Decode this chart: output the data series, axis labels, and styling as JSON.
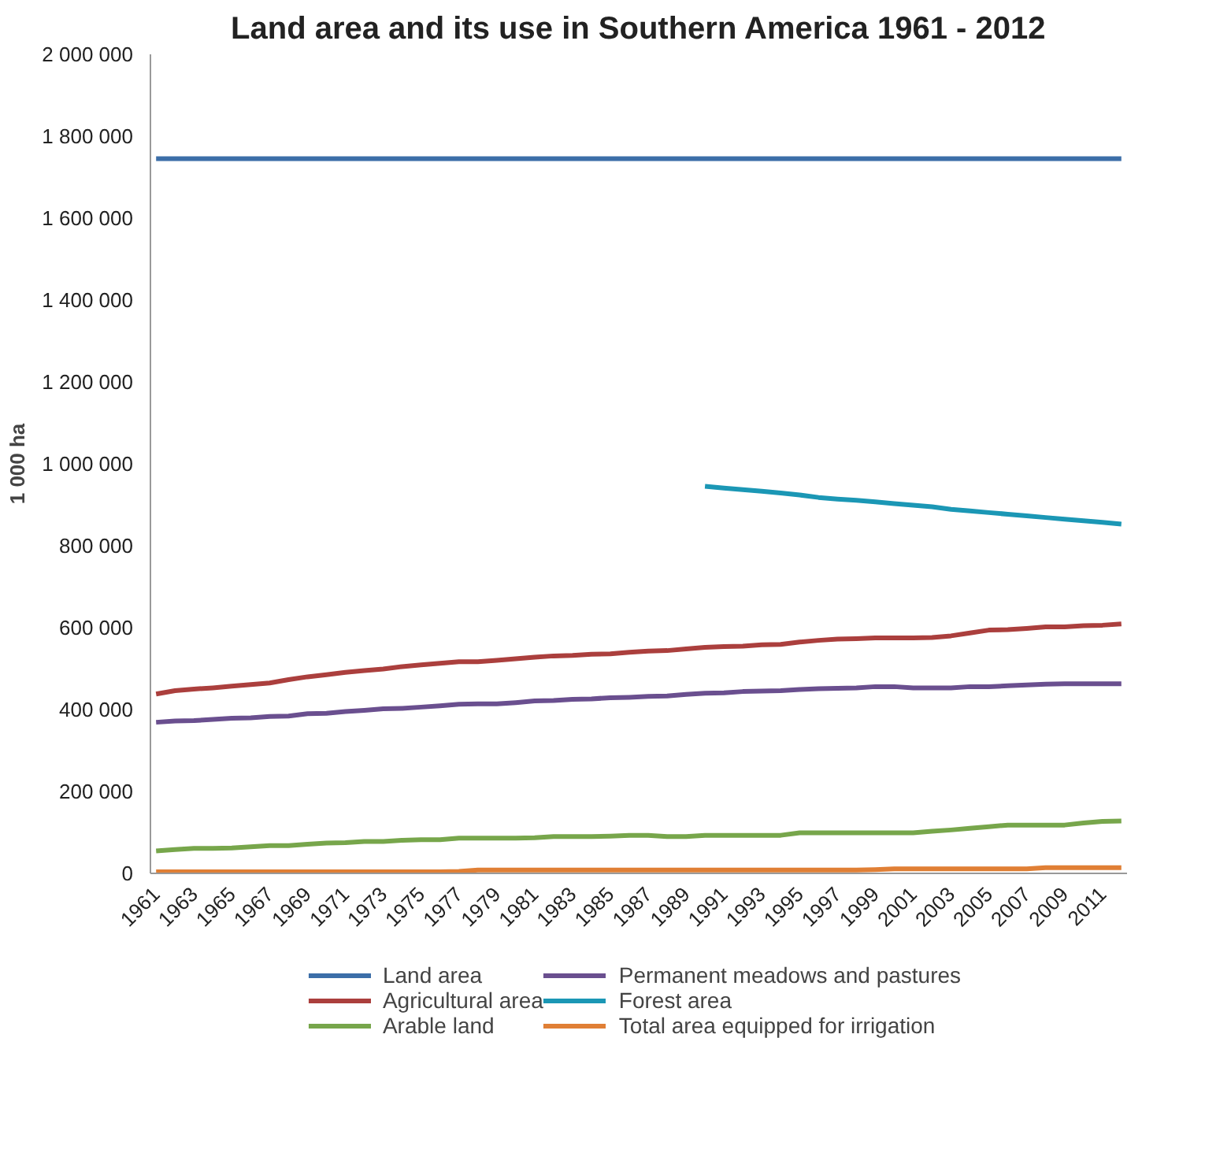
{
  "chart_data": {
    "type": "line",
    "title": "Land area and its use in Southern America 1961 - 2012",
    "ylabel": "1 000 ha",
    "x": [
      1961,
      1962,
      1963,
      1964,
      1965,
      1966,
      1967,
      1968,
      1969,
      1970,
      1971,
      1972,
      1973,
      1974,
      1975,
      1976,
      1977,
      1978,
      1979,
      1980,
      1981,
      1982,
      1983,
      1984,
      1985,
      1986,
      1987,
      1988,
      1989,
      1990,
      1991,
      1992,
      1993,
      1994,
      1995,
      1996,
      1997,
      1998,
      1999,
      2000,
      2001,
      2002,
      2003,
      2004,
      2005,
      2006,
      2007,
      2008,
      2009,
      2010,
      2011,
      2012
    ],
    "series": [
      {
        "name": "Land area",
        "color": "#3c6ea8",
        "values": [
          1745000,
          1745000,
          1745000,
          1745000,
          1745000,
          1745000,
          1745000,
          1745000,
          1745000,
          1745000,
          1745000,
          1745000,
          1745000,
          1745000,
          1745000,
          1745000,
          1745000,
          1745000,
          1745000,
          1745000,
          1745000,
          1745000,
          1745000,
          1745000,
          1745000,
          1745000,
          1745000,
          1745000,
          1745000,
          1745000,
          1745000,
          1745000,
          1745000,
          1745000,
          1745000,
          1745000,
          1745000,
          1745000,
          1745000,
          1745000,
          1745000,
          1745000,
          1745000,
          1745000,
          1745000,
          1745000,
          1745000,
          1745000,
          1745000,
          1745000,
          1745000,
          1745000
        ]
      },
      {
        "name": "Permanent meadows and pastures",
        "color": "#6a4f8f",
        "values": [
          369000,
          372000,
          373000,
          376000,
          379000,
          380000,
          383000,
          384000,
          390000,
          391000,
          395000,
          398000,
          402000,
          403000,
          406000,
          409000,
          413000,
          414000,
          414000,
          417000,
          421000,
          422000,
          425000,
          426000,
          429000,
          430000,
          432000,
          433000,
          437000,
          440000,
          441000,
          444000,
          445000,
          446000,
          449000,
          451000,
          452000,
          453000,
          456000,
          456000,
          453000,
          453000,
          453000,
          456000,
          456000,
          458000,
          460000,
          462000,
          463000,
          463000,
          463000,
          463000
        ]
      },
      {
        "name": "Agricultural area",
        "color": "#ab3f3d",
        "values": [
          438000,
          446000,
          450000,
          453000,
          457000,
          461000,
          465000,
          473000,
          480000,
          485000,
          491000,
          495000,
          499000,
          505000,
          509000,
          513000,
          517000,
          517000,
          520000,
          524000,
          528000,
          531000,
          532000,
          535000,
          536000,
          540000,
          543000,
          544000,
          548000,
          552000,
          554000,
          555000,
          558000,
          559000,
          565000,
          569000,
          572000,
          573000,
          575000,
          575000,
          575000,
          576000,
          580000,
          587000,
          594000,
          595000,
          598000,
          602000,
          602000,
          605000,
          606000,
          609000
        ]
      },
      {
        "name": "Forest area",
        "color": "#1b97b5",
        "values": [
          null,
          null,
          null,
          null,
          null,
          null,
          null,
          null,
          null,
          null,
          null,
          null,
          null,
          null,
          null,
          null,
          null,
          null,
          null,
          null,
          null,
          null,
          null,
          null,
          null,
          null,
          null,
          null,
          null,
          945000,
          941000,
          937000,
          933000,
          929000,
          924000,
          918000,
          914000,
          911000,
          907000,
          903000,
          899000,
          895000,
          889000,
          885000,
          881000,
          877000,
          873000,
          869000,
          865000,
          861000,
          857000,
          853000
        ]
      },
      {
        "name": "Arable land",
        "color": "#77a64b",
        "values": [
          55000,
          58000,
          61000,
          61000,
          62000,
          65000,
          68000,
          68000,
          71000,
          74000,
          75000,
          78000,
          78000,
          81000,
          82000,
          82000,
          86000,
          86000,
          86000,
          86000,
          87000,
          90000,
          90000,
          90000,
          91000,
          93000,
          93000,
          90000,
          90000,
          93000,
          93000,
          93000,
          93000,
          93000,
          99000,
          99000,
          99000,
          99000,
          99000,
          99000,
          99000,
          103000,
          106000,
          110000,
          114000,
          118000,
          118000,
          118000,
          118000,
          123000,
          127000,
          128000
        ]
      },
      {
        "name": "Total area equipped for irrigation",
        "color": "#e07f35",
        "values": [
          4000,
          4000,
          4000,
          4000,
          4000,
          4000,
          4000,
          4000,
          4000,
          4000,
          4000,
          4000,
          4000,
          4000,
          4000,
          4000,
          5000,
          8000,
          8000,
          8000,
          8000,
          8000,
          8000,
          8000,
          8000,
          8000,
          8000,
          8000,
          8000,
          8000,
          8000,
          8000,
          8000,
          8000,
          8000,
          8000,
          8000,
          8000,
          9000,
          11000,
          11000,
          11000,
          11000,
          11000,
          11000,
          11000,
          11000,
          14000,
          14000,
          14000,
          14000,
          14000
        ]
      }
    ],
    "xlim": [
      1960.7,
      2012.3
    ],
    "xticks": [
      1961,
      1963,
      1965,
      1967,
      1969,
      1971,
      1973,
      1975,
      1977,
      1979,
      1981,
      1983,
      1985,
      1987,
      1989,
      1991,
      1993,
      1995,
      1997,
      1999,
      2001,
      2003,
      2005,
      2007,
      2009,
      2011
    ],
    "ylim": [
      0,
      2000000
    ],
    "yticks": [
      {
        "value": 0,
        "label": "0"
      },
      {
        "value": 200000,
        "label": "200 000"
      },
      {
        "value": 400000,
        "label": "400 000"
      },
      {
        "value": 600000,
        "label": "600 000"
      },
      {
        "value": 800000,
        "label": "800 000"
      },
      {
        "value": 1000000,
        "label": "1 000 000"
      },
      {
        "value": 1200000,
        "label": "1 200 000"
      },
      {
        "value": 1400000,
        "label": "1 400 000"
      },
      {
        "value": 1600000,
        "label": "1 600 000"
      },
      {
        "value": 1800000,
        "label": "1 800 000"
      },
      {
        "value": 2000000,
        "label": "2 000 000"
      }
    ],
    "grid": false,
    "legend": "bottom",
    "marker": "none",
    "line_style": "solid"
  }
}
